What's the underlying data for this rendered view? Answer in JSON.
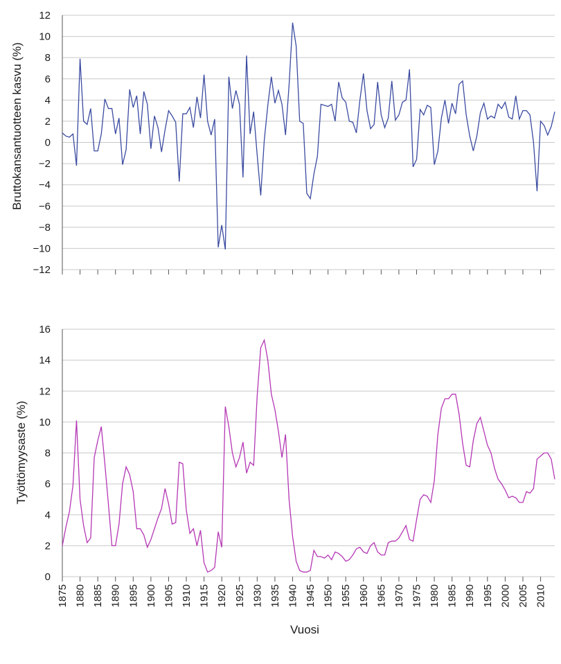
{
  "x_axis_label": "Vuosi",
  "x_ticks": [
    1875,
    1880,
    1885,
    1890,
    1895,
    1900,
    1905,
    1910,
    1915,
    1920,
    1925,
    1930,
    1935,
    1940,
    1945,
    1950,
    1955,
    1960,
    1965,
    1970,
    1975,
    1980,
    1985,
    1990,
    1995,
    2000,
    2005,
    2010
  ],
  "chart_data": [
    {
      "type": "line",
      "title": "",
      "xlabel": "",
      "ylabel": "Bruttokansantuotteen kasvu (%)",
      "xlim": [
        1875,
        2014
      ],
      "ylim": [
        -12,
        12
      ],
      "yticks": [
        12,
        10,
        8,
        6,
        4,
        2,
        0,
        -2,
        -4,
        -6,
        -8,
        -10,
        -12
      ],
      "grid": true,
      "color": "#3a4aa0",
      "x_start": 1875,
      "values": [
        0.9,
        0.6,
        0.5,
        0.8,
        -2.2,
        7.9,
        2,
        1.7,
        3.2,
        -0.8,
        -0.8,
        0.8,
        4.1,
        3.2,
        3.2,
        0.8,
        2.3,
        -2.1,
        -0.7,
        5,
        3.3,
        4.4,
        0.8,
        4.8,
        3.6,
        -0.6,
        2.5,
        1.4,
        -0.9,
        1.2,
        3,
        2.5,
        1.9,
        -3.7,
        2.7,
        2.7,
        3.3,
        1.4,
        4.3,
        2.3,
        6.4,
        2,
        0.7,
        2.2,
        -9.9,
        -7.8,
        -10.1,
        6.2,
        3.2,
        4.9,
        3.6,
        -3.3,
        8.2,
        0.8,
        2.9,
        -1.2,
        -5,
        0.2,
        3.5,
        6.2,
        3.7,
        4.9,
        3.6,
        0.7,
        5.4,
        11.3,
        9.1,
        2,
        1.8,
        -4.8,
        -5.3,
        -3,
        -1.3,
        3.6,
        3.5,
        3.4,
        3.6,
        2,
        5.7,
        4.2,
        3.8,
        2,
        1.9,
        0.9,
        4,
        6.5,
        3,
        1.3,
        1.7,
        5.7,
        2.6,
        1.4,
        2.3,
        5.8,
        2.1,
        2.6,
        3.8,
        4,
        6.9,
        -2.3,
        -1.6,
        3.1,
        2.6,
        3.5,
        3.3,
        -2.1,
        -0.8,
        2.3,
        4,
        1.8,
        3.7,
        2.7,
        5.5,
        5.8,
        2.6,
        0.6,
        -0.8,
        0.6,
        2.8,
        3.7,
        2.2,
        2.5,
        2.3,
        3.6,
        3.2,
        3.8,
        2.4,
        2.2,
        4.4,
        2.2,
        3,
        3,
        2.6,
        0,
        -4.6,
        2,
        1.6,
        0.7,
        1.5,
        2.9
      ]
    },
    {
      "type": "line",
      "title": "",
      "xlabel": "Vuosi",
      "ylabel": "Työttömyysaste (%)",
      "xlim": [
        1875,
        2014
      ],
      "ylim": [
        0,
        16
      ],
      "yticks": [
        16,
        14,
        12,
        10,
        8,
        6,
        4,
        2,
        0
      ],
      "grid": true,
      "color": "#b436b4",
      "x_start": 1875,
      "values": [
        2,
        3.2,
        4.2,
        5.9,
        10.1,
        5,
        3.3,
        2.2,
        2.5,
        7.7,
        8.8,
        9.7,
        7.3,
        4.7,
        2,
        2,
        3.4,
        6,
        7.1,
        6.6,
        5.5,
        3.1,
        3.1,
        2.7,
        1.9,
        2.4,
        3.1,
        3.8,
        4.4,
        5.7,
        4.7,
        3.4,
        3.5,
        7.4,
        7.3,
        4.3,
        2.8,
        3.1,
        2,
        3,
        0.9,
        0.3,
        0.4,
        0.6,
        2.9,
        1.9,
        11,
        9.7,
        8,
        7.1,
        7.7,
        8.7,
        6.7,
        7.4,
        7.2,
        11.7,
        14.8,
        15.3,
        14,
        11.8,
        10.8,
        9.4,
        7.7,
        9.2,
        5,
        2.6,
        1,
        0.4,
        0.3,
        0.3,
        0.4,
        1.7,
        1.3,
        1.3,
        1.2,
        1.4,
        1.1,
        1.6,
        1.5,
        1.3,
        1,
        1.1,
        1.4,
        1.8,
        1.9,
        1.6,
        1.5,
        2,
        2.2,
        1.6,
        1.4,
        1.4,
        2.2,
        2.3,
        2.3,
        2.5,
        2.9,
        3.3,
        2.4,
        2.3,
        3.7,
        5,
        5.3,
        5.2,
        4.8,
        6.2,
        9.2,
        10.9,
        11.5,
        11.5,
        11.8,
        11.8,
        10.5,
        8.6,
        7.2,
        7.1,
        8.8,
        9.9,
        10.3,
        9.4,
        8.5,
        8,
        7,
        6.3,
        6,
        5.6,
        5.1,
        5.2,
        5.1,
        4.8,
        4.8,
        5.5,
        5.4,
        5.7,
        7.6,
        7.8,
        8,
        8,
        7.6,
        6.3
      ]
    }
  ]
}
